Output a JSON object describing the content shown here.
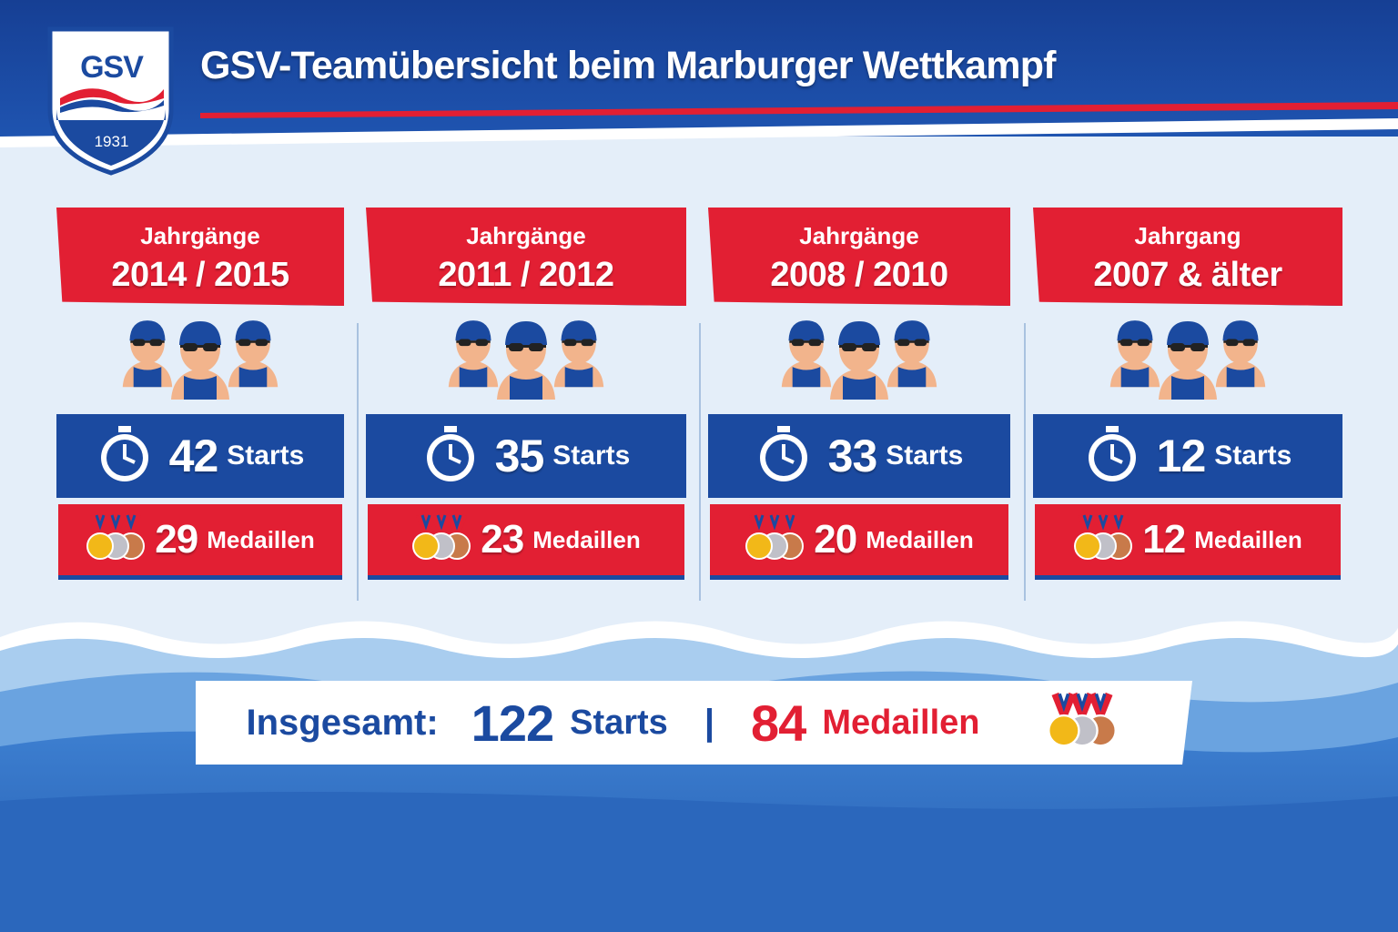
{
  "header": {
    "logo": {
      "text": "GSV",
      "year": "1931"
    },
    "title": "GSV-Teamübersicht beim Marburger Wettkampf"
  },
  "groups": [
    {
      "label": "Jahrgänge",
      "years": "2014 / 2015",
      "starts": 42,
      "starts_label": "Starts",
      "medals": 29,
      "medals_label": "Medaillen"
    },
    {
      "label": "Jahrgänge",
      "years": "2011 / 2012",
      "starts": 35,
      "starts_label": "Starts",
      "medals": 23,
      "medals_label": "Medaillen"
    },
    {
      "label": "Jahrgänge",
      "years": "2008 / 2010",
      "starts": 33,
      "starts_label": "Starts",
      "medals": 20,
      "medals_label": "Medaillen"
    },
    {
      "label": "Jahrgang",
      "years": "2007 & älter",
      "starts": 12,
      "starts_label": "Starts",
      "medals": 12,
      "medals_label": "Medaillen"
    }
  ],
  "total": {
    "label": "Insgesamt:",
    "starts": 122,
    "starts_label": "Starts",
    "separator": "|",
    "medals": 84,
    "medals_label": "Medaillen"
  }
}
